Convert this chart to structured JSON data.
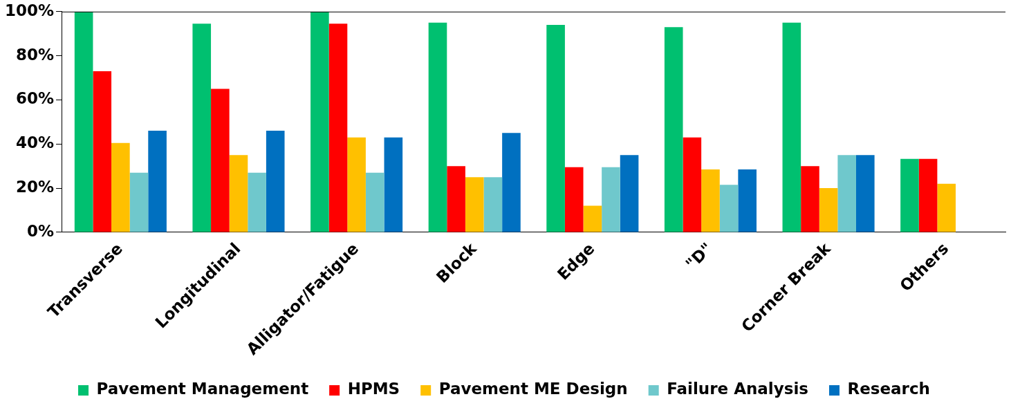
{
  "chart_data": {
    "type": "bar",
    "categories": [
      "Transverse",
      "Longitudinal",
      "Alligator/Fatigue",
      "Block",
      "Edge",
      "\"D\"",
      "Corner Break",
      "Others"
    ],
    "series": [
      {
        "name": "Pavement Management",
        "color": "#00c070",
        "values": [
          100,
          94.5,
          100,
          95,
          94,
          93,
          95,
          33.3
        ]
      },
      {
        "name": "HPMS",
        "color": "#ff0000",
        "values": [
          73,
          65,
          94.5,
          30,
          29.5,
          43,
          30,
          33.3
        ]
      },
      {
        "name": "Pavement ME Design",
        "color": "#ffc000",
        "values": [
          40.5,
          35,
          43,
          25,
          12,
          28.5,
          20,
          22
        ]
      },
      {
        "name": "Failure Analysis",
        "color": "#6fc8cc",
        "values": [
          27,
          27,
          27,
          25,
          29.5,
          21.5,
          35,
          0
        ]
      },
      {
        "name": "Research",
        "color": "#0070c0",
        "values": [
          46,
          46,
          43,
          45,
          35,
          28.5,
          35,
          0
        ]
      }
    ],
    "ylim": [
      0,
      100
    ],
    "yticks": [
      {
        "value": 0,
        "label": "0%"
      },
      {
        "value": 20,
        "label": "20%"
      },
      {
        "value": 40,
        "label": "40%"
      },
      {
        "value": 60,
        "label": "60%"
      },
      {
        "value": 80,
        "label": "80%"
      },
      {
        "value": 100,
        "label": "100%"
      }
    ],
    "grid": false,
    "legend": "bottom"
  }
}
